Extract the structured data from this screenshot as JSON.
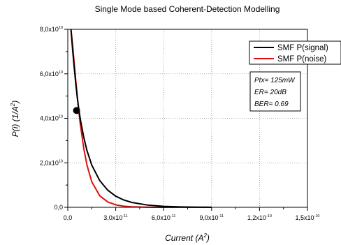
{
  "chart_data": {
    "type": "line",
    "title": "Single Mode based Coherent-Detection Modelling",
    "xlabel_main": "Current (A",
    "xlabel_sup": "2",
    "xlabel_close": ")",
    "ylabel_main": "P(i) (1/A",
    "ylabel_sup": "2",
    "ylabel_close": ")",
    "xlim": [
      0,
      1.5e-10
    ],
    "ylim": [
      0,
      80000000000.0
    ],
    "x_ticks": [
      {
        "value": 0,
        "mant": "0,0",
        "exp": ""
      },
      {
        "value": 3e-11,
        "mant": "3,0x10",
        "exp": "-11"
      },
      {
        "value": 6e-11,
        "mant": "6,0x10",
        "exp": "-11"
      },
      {
        "value": 9e-11,
        "mant": "9,0x10",
        "exp": "-11"
      },
      {
        "value": 1.2e-10,
        "mant": "1,2x10",
        "exp": "-10"
      },
      {
        "value": 1.5e-10,
        "mant": "1,5x10",
        "exp": "-10"
      }
    ],
    "y_ticks": [
      {
        "value": 0,
        "mant": "0,0",
        "exp": ""
      },
      {
        "value": 20000000000.0,
        "mant": "2,0x10",
        "exp": "10"
      },
      {
        "value": 40000000000.0,
        "mant": "4,0x10",
        "exp": "10"
      },
      {
        "value": 60000000000.0,
        "mant": "6,0x10",
        "exp": "10"
      },
      {
        "value": 80000000000.0,
        "mant": "8,0x10",
        "exp": "10"
      }
    ],
    "grid": "dotted",
    "legend_position": "top-right",
    "series": [
      {
        "name": "SMF P(signal)",
        "color": "#000000",
        "x": [
          2e-12,
          3e-12,
          4e-12,
          5e-12,
          6e-12,
          7e-12,
          8e-12,
          1e-11,
          1.2e-11,
          1.5e-11,
          2e-11,
          2.5e-11,
          3e-11,
          3.5e-11,
          4e-11,
          5e-11,
          6e-11,
          7e-11,
          8e-11,
          9e-11
        ],
        "y": [
          80000000000.0,
          71000000000.0,
          63000000000.0,
          55500000000.0,
          49000000000.0,
          43500000000.0,
          39000000000.0,
          31500000000.0,
          25500000000.0,
          19000000000.0,
          12000000000.0,
          7700000000.0,
          5000000000.0,
          3300000000.0,
          2200000000.0,
          1000000000.0,
          450000000.0,
          200000000.0,
          80000000.0,
          30000000.0
        ]
      },
      {
        "name": "SMF P(noise)",
        "color": "#e01010",
        "x": [
          2e-12,
          3e-12,
          4e-12,
          5e-12,
          6e-12,
          7e-12,
          8e-12,
          1e-11,
          1.2e-11,
          1.5e-11,
          2e-11,
          2.5e-11,
          3e-11,
          3.5e-11,
          4e-11,
          5e-11,
          6e-11,
          7e-11,
          8e-11,
          9e-11
        ],
        "y": [
          80000000000.0,
          73000000000.0,
          65000000000.0,
          57000000000.0,
          49500000000.0,
          42500000000.0,
          36500000000.0,
          26500000000.0,
          19000000000.0,
          11500000000.0,
          5200000000.0,
          2400000000.0,
          1100000000.0,
          500000000.0,
          230000000.0,
          50000000.0,
          10000000.0,
          2000000.0,
          0,
          0
        ]
      }
    ],
    "marker": {
      "x": 5.5e-12,
      "y": 43500000000.0,
      "color": "#000000"
    },
    "annotations": [
      "Ptx= 125mW",
      "ER= 20dB",
      "BER= 0.69"
    ]
  }
}
